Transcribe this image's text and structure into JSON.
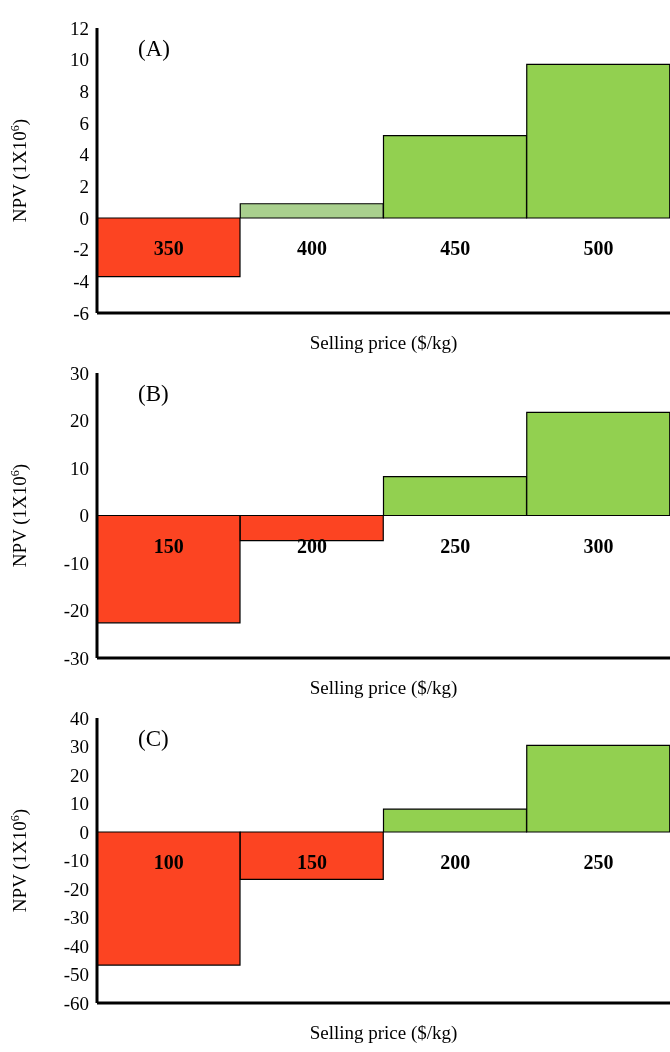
{
  "chart_data": [
    {
      "type": "bar",
      "annotations": [
        "(A)"
      ],
      "xlabel": "Selling price ($/kg)",
      "ylabel": "NPV (1X10$^{6}$)",
      "categories": [
        "350",
        "400",
        "450",
        "500"
      ],
      "values": [
        -3.7,
        0.9,
        5.2,
        9.7
      ],
      "colors": [
        "#fc4422",
        "#a9d08e",
        "#92d050",
        "#92d050"
      ],
      "ylim": [
        -6,
        12
      ],
      "yticks": [
        -6,
        -4,
        -2,
        0,
        2,
        4,
        6,
        8,
        10,
        12
      ]
    },
    {
      "type": "bar",
      "annotations": [
        "(B)"
      ],
      "xlabel": "Selling price ($/kg)",
      "ylabel": "NPV (1X10$^{6}$)",
      "categories": [
        "150",
        "200",
        "250",
        "300"
      ],
      "values": [
        -22.6,
        -5.3,
        8.2,
        21.7
      ],
      "colors": [
        "#fc4422",
        "#fc4422",
        "#92d050",
        "#92d050"
      ],
      "ylim": [
        -30,
        30
      ],
      "yticks": [
        -30,
        -20,
        -10,
        0,
        10,
        20,
        30
      ]
    },
    {
      "type": "bar",
      "annotations": [
        "(C)"
      ],
      "xlabel": "Selling price ($/kg)",
      "ylabel": "NPV (1X10$^{6}$)",
      "categories": [
        "100",
        "150",
        "200",
        "250"
      ],
      "values": [
        -46.7,
        -16.6,
        8.0,
        30.4
      ],
      "colors": [
        "#fc4422",
        "#fc4422",
        "#92d050",
        "#92d050"
      ],
      "ylim": [
        -60,
        40
      ],
      "yticks": [
        -60,
        -50,
        -40,
        -30,
        -20,
        -10,
        0,
        10,
        20,
        30,
        40
      ]
    }
  ]
}
